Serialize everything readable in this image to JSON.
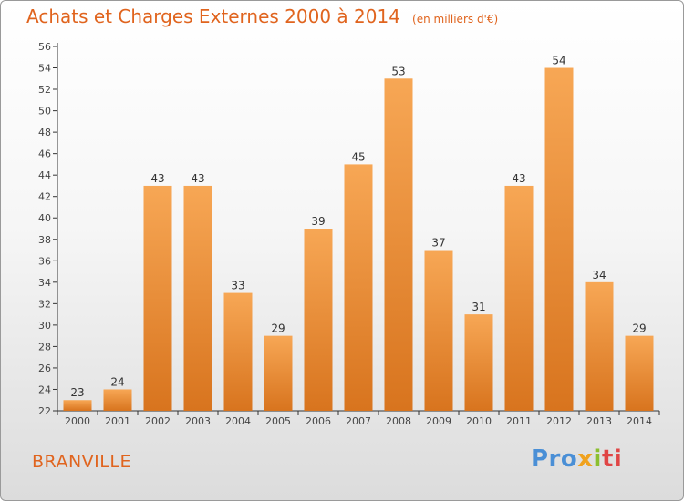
{
  "header": {
    "title": "Achats et Charges Externes 2000 à 2014",
    "unit": "(en milliers d'€)"
  },
  "footer": {
    "town": "BRANVILLE",
    "logo": [
      "Pro",
      "x",
      "i",
      "ti"
    ]
  },
  "colors": {
    "title": "#e0641e",
    "bar_light": "#f7a755",
    "bar_dark": "#d8741e",
    "axis": "#333333"
  },
  "chart_data": {
    "type": "bar",
    "title": "Achats et Charges Externes 2000 à 2014",
    "subtitle": "(en milliers d'€)",
    "categories": [
      "2000",
      "2001",
      "2002",
      "2003",
      "2004",
      "2005",
      "2006",
      "2007",
      "2008",
      "2009",
      "2010",
      "2011",
      "2012",
      "2013",
      "2014"
    ],
    "values": [
      23,
      24,
      43,
      43,
      33,
      29,
      39,
      45,
      53,
      37,
      31,
      43,
      54,
      34,
      29
    ],
    "ylim": [
      22,
      56
    ],
    "yticks": [
      22,
      24,
      26,
      28,
      30,
      32,
      34,
      36,
      38,
      40,
      42,
      44,
      46,
      48,
      50,
      52,
      54,
      56
    ],
    "grid": false,
    "data_labels": true,
    "xlabel": "",
    "ylabel": ""
  }
}
